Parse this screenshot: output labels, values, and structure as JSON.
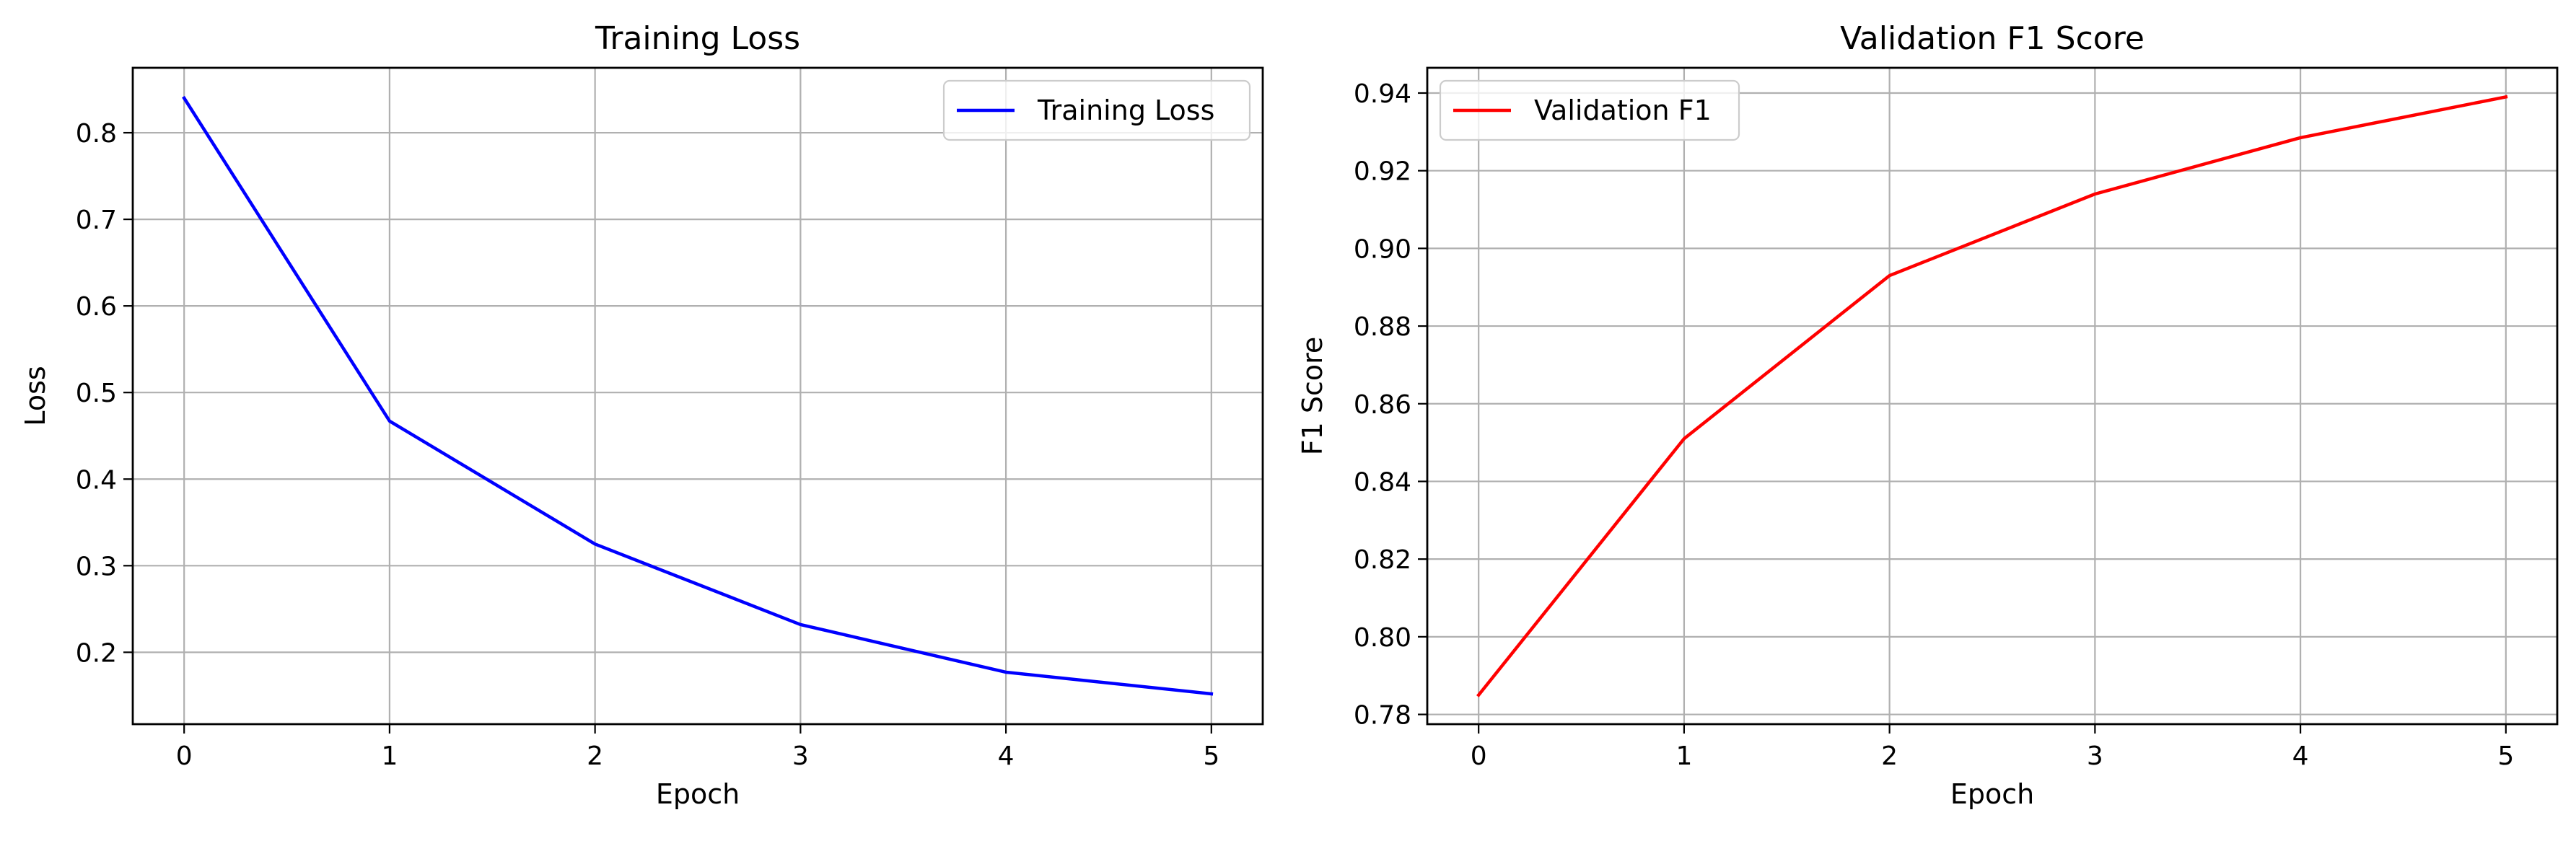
{
  "chart_data": [
    {
      "type": "line",
      "title": "Training Loss",
      "xlabel": "Epoch",
      "ylabel": "Loss",
      "xlim": [
        -0.25,
        5.25
      ],
      "ylim": [
        0.117,
        0.875
      ],
      "xticks": [
        0,
        1,
        2,
        3,
        4,
        5
      ],
      "yticks": [
        0.2,
        0.3,
        0.4,
        0.5,
        0.6,
        0.7,
        0.8
      ],
      "xtick_labels": [
        "0",
        "1",
        "2",
        "3",
        "4",
        "5"
      ],
      "ytick_labels": [
        "0.2",
        "0.3",
        "0.4",
        "0.5",
        "0.6",
        "0.7",
        "0.8"
      ],
      "grid": true,
      "legend": "top-right",
      "series": [
        {
          "name": "Training Loss",
          "color": "#0000ff",
          "x": [
            0,
            1,
            2,
            3,
            4,
            5
          ],
          "y": [
            0.84,
            0.467,
            0.325,
            0.232,
            0.177,
            0.152
          ]
        }
      ]
    },
    {
      "type": "line",
      "title": "Validation F1 Score",
      "xlabel": "Epoch",
      "ylabel": "F1 Score",
      "xlim": [
        -0.25,
        5.25
      ],
      "ylim": [
        0.7775,
        0.9465
      ],
      "xticks": [
        0,
        1,
        2,
        3,
        4,
        5
      ],
      "yticks": [
        0.78,
        0.8,
        0.82,
        0.84,
        0.86,
        0.88,
        0.9,
        0.92,
        0.94
      ],
      "xtick_labels": [
        "0",
        "1",
        "2",
        "3",
        "4",
        "5"
      ],
      "ytick_labels": [
        "0.78",
        "0.80",
        "0.82",
        "0.84",
        "0.86",
        "0.88",
        "0.90",
        "0.92",
        "0.94"
      ],
      "grid": true,
      "legend": "top-left",
      "series": [
        {
          "name": "Validation F1",
          "color": "#ff0000",
          "x": [
            0,
            1,
            2,
            3,
            4,
            5
          ],
          "y": [
            0.785,
            0.851,
            0.893,
            0.914,
            0.9285,
            0.939
          ]
        }
      ]
    }
  ]
}
